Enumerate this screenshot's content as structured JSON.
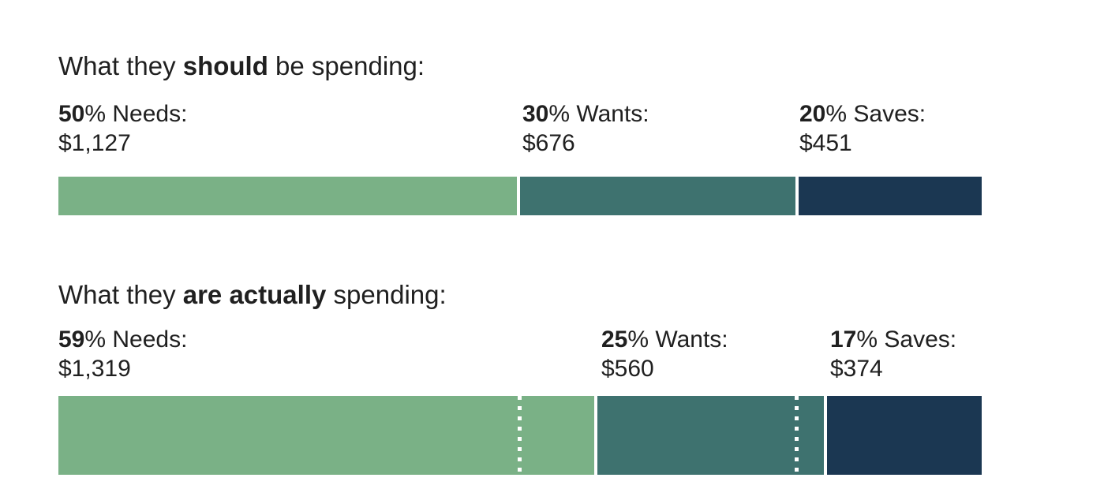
{
  "colors": {
    "needs": "#7ab186",
    "wants": "#3e726f",
    "saves": "#1b3752",
    "text": "#202020",
    "background": "#ffffff"
  },
  "sections": [
    {
      "id": "should",
      "heading": {
        "pre": "What they ",
        "bold": "should",
        "post": " be spending:"
      },
      "labels": [
        {
          "pct": "50",
          "rest": "% Needs:",
          "amount": "$1,127"
        },
        {
          "pct": "30",
          "rest": "% Wants:",
          "amount": "$676"
        },
        {
          "pct": "20",
          "rest": "% Saves:",
          "amount": "$451"
        }
      ],
      "segments": [
        {
          "name": "Needs",
          "value": 50,
          "color": "#7ab186"
        },
        {
          "name": "Wants",
          "value": 30,
          "color": "#3e726f"
        },
        {
          "name": "Saves",
          "value": 20,
          "color": "#1b3752"
        }
      ]
    },
    {
      "id": "actual",
      "heading": {
        "pre": "What they ",
        "bold": "are actually",
        "post": " spending:"
      },
      "labels": [
        {
          "pct": "59",
          "rest": "% Needs:",
          "amount": "$1,319"
        },
        {
          "pct": "25",
          "rest": "% Wants:",
          "amount": "$560"
        },
        {
          "pct": "17",
          "rest": "% Saves:",
          "amount": "$374"
        }
      ],
      "segments": [
        {
          "name": "Needs",
          "value": 59,
          "color": "#7ab186"
        },
        {
          "name": "Wants",
          "value": 25,
          "color": "#3e726f"
        },
        {
          "name": "Saves",
          "value": 17,
          "color": "#1b3752"
        }
      ],
      "guide_lines_pct": [
        50,
        80
      ]
    }
  ],
  "chart_data": {
    "type": "bar",
    "subtype": "horizontal-stacked-comparison",
    "categories": [
      "Needs",
      "Wants",
      "Saves"
    ],
    "series": [
      {
        "name": "What they should be spending:",
        "percents": [
          50,
          30,
          20
        ],
        "amounts": [
          1127,
          676,
          451
        ],
        "amount_labels": [
          "$1,127",
          "$676",
          "$451"
        ]
      },
      {
        "name": "What they are actually spending:",
        "percents": [
          59,
          25,
          17
        ],
        "amounts": [
          1319,
          560,
          374
        ],
        "amount_labels": [
          "$1,319",
          "$560",
          "$374"
        ],
        "guide_lines_percent": [
          50,
          80
        ]
      }
    ],
    "segment_colors": [
      "#7ab186",
      "#3e726f",
      "#1b3752"
    ],
    "legend": "none",
    "axes": "none",
    "grid": false
  }
}
